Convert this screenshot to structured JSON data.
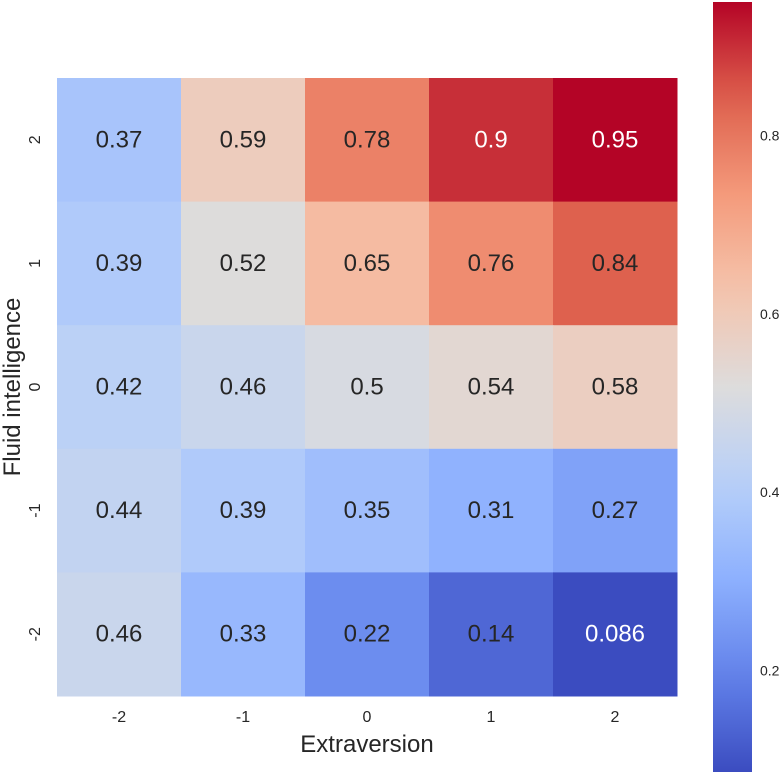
{
  "chart_data": {
    "type": "heatmap",
    "title": "",
    "xlabel": "Extraversion",
    "ylabel": "Fluid intelligence",
    "x_categories": [
      "-2",
      "-1",
      "0",
      "1",
      "2"
    ],
    "y_categories": [
      "2",
      "1",
      "0",
      "-1",
      "-2"
    ],
    "values": [
      [
        0.37,
        0.59,
        0.78,
        0.9,
        0.95
      ],
      [
        0.39,
        0.52,
        0.65,
        0.76,
        0.84
      ],
      [
        0.42,
        0.46,
        0.5,
        0.54,
        0.58
      ],
      [
        0.44,
        0.39,
        0.35,
        0.31,
        0.27
      ],
      [
        0.46,
        0.33,
        0.22,
        0.14,
        0.086
      ]
    ],
    "value_labels": [
      [
        "0.37",
        "0.59",
        "0.78",
        "0.9",
        "0.95"
      ],
      [
        "0.39",
        "0.52",
        "0.65",
        "0.76",
        "0.84"
      ],
      [
        "0.42",
        "0.46",
        "0.5",
        "0.54",
        "0.58"
      ],
      [
        "0.44",
        "0.39",
        "0.35",
        "0.31",
        "0.27"
      ],
      [
        "0.46",
        "0.33",
        "0.22",
        "0.14",
        "0.086"
      ]
    ],
    "colormap": "coolwarm",
    "vmin": 0.086,
    "vmax": 0.95,
    "colorbar": {
      "ticks": [
        0.2,
        0.4,
        0.6,
        0.8
      ],
      "tick_labels": [
        "0.2",
        "0.4",
        "0.6",
        "0.8"
      ]
    }
  },
  "colors": {
    "cold": "#3b4cc0",
    "neutral": "#dddcdc",
    "warm": "#b40426"
  }
}
